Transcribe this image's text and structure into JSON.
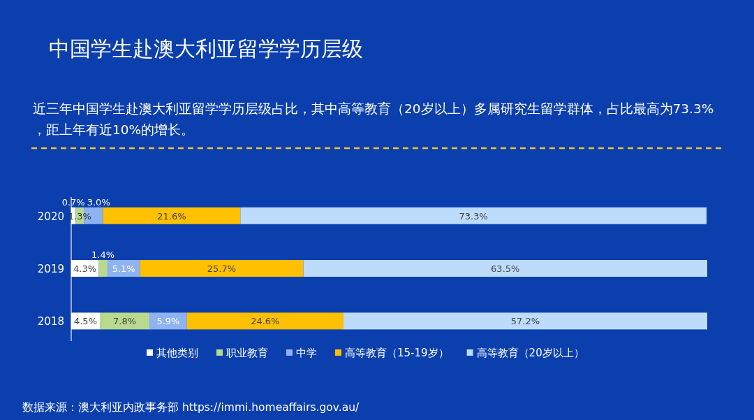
{
  "chart_data": {
    "type": "bar",
    "orientation": "horizontal",
    "stacked": true,
    "legend": "bottom",
    "title": "中国学生赴澳大利亚留学学历层级",
    "subtitle": "近三年中国学生赴澳大利亚留学学历层级占比，其中高等教育（20岁以上）多属研究生留学群体，占比最高为73.3%，距上年有近10%的增长。",
    "annotations": [
      "数据来源：澳大利亚内政事务部 https://immi.homeaffairs.gov.au/"
    ],
    "categories": [
      "2020",
      "2019",
      "2018"
    ],
    "series": [
      {
        "name": "其他类别",
        "color": "#ffffff",
        "values": [
          0.7,
          4.3,
          4.5
        ],
        "value_labels": [
          "0.7%",
          "4.3%",
          "4.5%"
        ]
      },
      {
        "name": "职业教育",
        "color": "#b9d98f",
        "values": [
          1.3,
          1.4,
          7.8
        ],
        "value_labels": [
          "1.3%",
          "1.4%",
          "7.8%"
        ]
      },
      {
        "name": "中学",
        "color": "#8fb3f0",
        "values": [
          3.0,
          5.1,
          5.9
        ],
        "value_labels": [
          "3.0%",
          "5.1%",
          "5.9%"
        ]
      },
      {
        "name": "高等教育（15-19岁）",
        "color": "#ffc000",
        "values": [
          21.6,
          25.7,
          24.6
        ],
        "value_labels": [
          "21.6%",
          "25.7%",
          "24.6%"
        ]
      },
      {
        "name": "高等教育（20岁以上）",
        "color": "#bddcfc",
        "values": [
          73.3,
          63.5,
          57.2
        ],
        "value_labels": [
          "73.3%",
          "63.5%",
          "57.2%"
        ]
      }
    ]
  }
}
